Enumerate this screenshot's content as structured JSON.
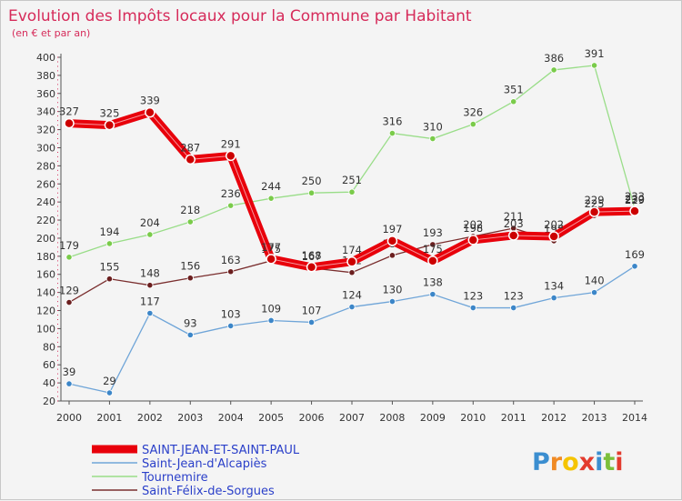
{
  "chart_data": {
    "type": "line",
    "title": "Evolution des Impôts locaux pour la Commune par Habitant",
    "subtitle": "(en € et par an)",
    "x": [
      "2000",
      "2001",
      "2002",
      "2003",
      "2004",
      "2005",
      "2006",
      "2007",
      "2008",
      "2009",
      "2010",
      "2011",
      "2012",
      "2013",
      "2014"
    ],
    "ylim": [
      20,
      400
    ],
    "yticks": [
      20,
      40,
      60,
      80,
      100,
      120,
      140,
      160,
      180,
      200,
      220,
      240,
      260,
      280,
      300,
      320,
      340,
      360,
      380,
      400
    ],
    "grid": false,
    "legend_position": "bottom-left",
    "series": [
      {
        "name": "SAINT-JEAN-ET-SAINT-PAUL",
        "color": "#e8000b",
        "dot": "#cc0000",
        "thick": true,
        "labels": [
          "327",
          "325",
          "339",
          "287",
          "291",
          "177",
          "168",
          "174",
          "197",
          "175",
          "198",
          "203",
          "202",
          "229",
          "230"
        ],
        "values": [
          327,
          325,
          339,
          287,
          291,
          177,
          168,
          174,
          197,
          175,
          198,
          203,
          202,
          229,
          230
        ]
      },
      {
        "name": "Saint-Jean-d'Alcapiès",
        "color": "#6fa5d8",
        "dot": "#3c86c8",
        "thick": false,
        "labels": [
          "39",
          "29",
          "117",
          "93",
          "103",
          "109",
          "107",
          "124",
          "130",
          "138",
          "123",
          "123",
          "134",
          "140",
          "169"
        ],
        "values": [
          39,
          29,
          117,
          93,
          103,
          109,
          107,
          124,
          130,
          138,
          123,
          123,
          134,
          140,
          169
        ]
      },
      {
        "name": "Tournemire",
        "color": "#99dd88",
        "dot": "#7acb4a",
        "thick": false,
        "labels": [
          "179",
          "194",
          "204",
          "218",
          "236",
          "244",
          "250",
          "251",
          "316",
          "310",
          "326",
          "351",
          "386",
          "391",
          "233"
        ],
        "values": [
          179,
          194,
          204,
          218,
          236,
          244,
          250,
          251,
          316,
          310,
          326,
          351,
          386,
          391,
          233
        ]
      },
      {
        "name": "Saint-Félix-de-Sorgues",
        "color": "#7a2e2e",
        "dot": "#6b1f1f",
        "thick": false,
        "labels": [
          "129",
          "155",
          "148",
          "156",
          "163",
          "175",
          "167",
          "162",
          "181",
          "193",
          "202",
          "211",
          "197",
          "225",
          "229"
        ],
        "values": [
          129,
          155,
          148,
          156,
          163,
          175,
          167,
          162,
          181,
          193,
          202,
          211,
          197,
          225,
          229
        ]
      }
    ]
  },
  "brand": {
    "text": "Proxiti",
    "letters": [
      "P",
      "r",
      "o",
      "x",
      "i",
      "t",
      "i"
    ],
    "colors": [
      "#3b8ed0",
      "#f08a24",
      "#f5c400",
      "#e33b2e",
      "#3b8ed0",
      "#7cbf3a",
      "#e33b2e"
    ]
  }
}
